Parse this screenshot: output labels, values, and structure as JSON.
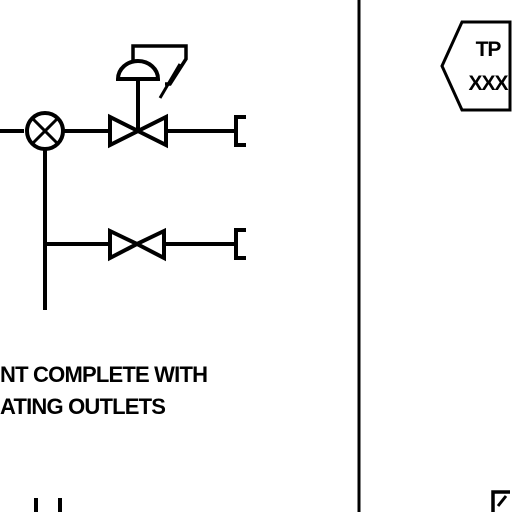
{
  "tag": {
    "line1": "TP",
    "line2": "XXX"
  },
  "note": {
    "line1": "NT COMPLETE WITH",
    "line2": "ATING OUTLETS"
  }
}
